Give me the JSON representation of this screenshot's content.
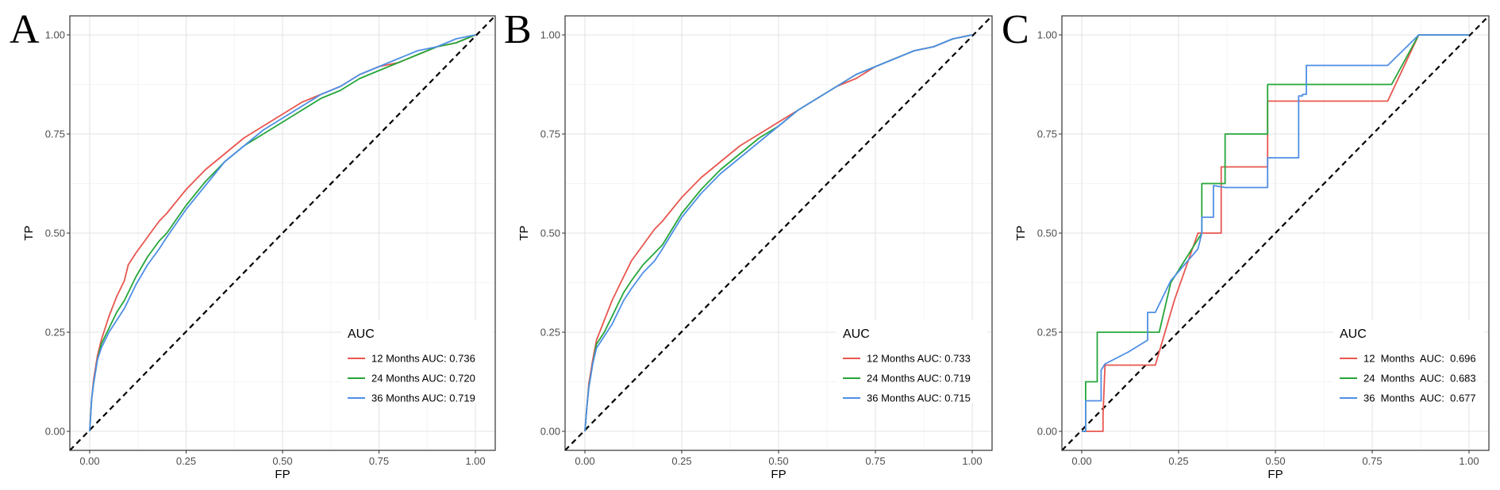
{
  "chart_data": [
    {
      "type": "line",
      "panel_label": "A",
      "xlabel": "FP",
      "ylabel": "TP",
      "xlim": [
        0,
        1
      ],
      "ylim": [
        0,
        1
      ],
      "x_ticks": [
        "0.00",
        "0.25",
        "0.50",
        "0.75",
        "1.00"
      ],
      "y_ticks": [
        "0.00",
        "0.25",
        "0.50",
        "0.75",
        "1.00"
      ],
      "grid": true,
      "reference_line": "diagonal dashed",
      "legend": {
        "title": "AUC",
        "position": "bottom-right",
        "entries": [
          "12 Months AUC: 0.736",
          "24 Months AUC: 0.720",
          "36 Months AUC: 0.719"
        ]
      },
      "series": [
        {
          "color": "#E8564F",
          "x": [
            0,
            0.005,
            0.01,
            0.02,
            0.03,
            0.05,
            0.07,
            0.09,
            0.1,
            0.12,
            0.15,
            0.18,
            0.2,
            0.25,
            0.3,
            0.35,
            0.4,
            0.45,
            0.5,
            0.55,
            0.6,
            0.65,
            0.7,
            0.75,
            0.8,
            0.85,
            0.9,
            0.95,
            1.0
          ],
          "y": [
            0,
            0.08,
            0.13,
            0.19,
            0.23,
            0.29,
            0.34,
            0.38,
            0.42,
            0.45,
            0.49,
            0.53,
            0.55,
            0.61,
            0.66,
            0.7,
            0.74,
            0.77,
            0.8,
            0.83,
            0.85,
            0.87,
            0.9,
            0.92,
            0.93,
            0.95,
            0.97,
            0.98,
            1.0
          ]
        },
        {
          "color": "#25A63A",
          "x": [
            0,
            0.005,
            0.01,
            0.02,
            0.03,
            0.05,
            0.07,
            0.09,
            0.1,
            0.12,
            0.15,
            0.18,
            0.2,
            0.25,
            0.3,
            0.35,
            0.4,
            0.45,
            0.5,
            0.55,
            0.6,
            0.65,
            0.7,
            0.75,
            0.8,
            0.85,
            0.9,
            0.95,
            1.0
          ],
          "y": [
            0,
            0.08,
            0.12,
            0.18,
            0.22,
            0.26,
            0.3,
            0.33,
            0.35,
            0.39,
            0.44,
            0.48,
            0.5,
            0.57,
            0.63,
            0.68,
            0.72,
            0.75,
            0.78,
            0.81,
            0.84,
            0.86,
            0.89,
            0.91,
            0.93,
            0.95,
            0.97,
            0.98,
            1.0
          ]
        },
        {
          "color": "#4F8FE6",
          "x": [
            0,
            0.005,
            0.01,
            0.02,
            0.03,
            0.05,
            0.07,
            0.09,
            0.1,
            0.12,
            0.15,
            0.18,
            0.2,
            0.25,
            0.3,
            0.35,
            0.4,
            0.45,
            0.5,
            0.55,
            0.6,
            0.65,
            0.7,
            0.75,
            0.8,
            0.85,
            0.9,
            0.95,
            1.0
          ],
          "y": [
            0,
            0.08,
            0.12,
            0.18,
            0.21,
            0.25,
            0.28,
            0.31,
            0.33,
            0.37,
            0.42,
            0.46,
            0.49,
            0.56,
            0.62,
            0.68,
            0.72,
            0.76,
            0.79,
            0.82,
            0.85,
            0.87,
            0.9,
            0.92,
            0.94,
            0.96,
            0.97,
            0.99,
            1.0
          ]
        }
      ]
    },
    {
      "type": "line",
      "panel_label": "B",
      "xlabel": "FP",
      "ylabel": "TP",
      "xlim": [
        0,
        1
      ],
      "ylim": [
        0,
        1
      ],
      "x_ticks": [
        "0.00",
        "0.25",
        "0.50",
        "0.75",
        "1.00"
      ],
      "y_ticks": [
        "0.00",
        "0.25",
        "0.50",
        "0.75",
        "1.00"
      ],
      "grid": true,
      "reference_line": "diagonal dashed",
      "legend": {
        "title": "AUC",
        "position": "bottom-right",
        "entries": [
          "12 Months AUC: 0.733",
          "24 Months AUC: 0.719",
          "36 Months AUC: 0.715"
        ]
      },
      "series": [
        {
          "color": "#E8564F",
          "x": [
            0,
            0.005,
            0.01,
            0.02,
            0.03,
            0.05,
            0.07,
            0.09,
            0.1,
            0.12,
            0.15,
            0.18,
            0.2,
            0.25,
            0.3,
            0.35,
            0.4,
            0.45,
            0.5,
            0.55,
            0.6,
            0.65,
            0.7,
            0.75,
            0.8,
            0.85,
            0.9,
            0.95,
            1.0
          ],
          "y": [
            0,
            0.06,
            0.12,
            0.18,
            0.23,
            0.28,
            0.33,
            0.37,
            0.39,
            0.43,
            0.47,
            0.51,
            0.53,
            0.59,
            0.64,
            0.68,
            0.72,
            0.75,
            0.78,
            0.81,
            0.84,
            0.87,
            0.89,
            0.92,
            0.94,
            0.96,
            0.97,
            0.99,
            1.0
          ]
        },
        {
          "color": "#25A63A",
          "x": [
            0,
            0.005,
            0.01,
            0.02,
            0.03,
            0.05,
            0.07,
            0.09,
            0.1,
            0.12,
            0.15,
            0.18,
            0.2,
            0.25,
            0.3,
            0.35,
            0.4,
            0.45,
            0.5,
            0.55,
            0.6,
            0.65,
            0.7,
            0.75,
            0.8,
            0.85,
            0.9,
            0.95,
            1.0
          ],
          "y": [
            0,
            0.06,
            0.11,
            0.17,
            0.22,
            0.25,
            0.29,
            0.33,
            0.35,
            0.38,
            0.42,
            0.45,
            0.47,
            0.55,
            0.61,
            0.66,
            0.7,
            0.74,
            0.77,
            0.81,
            0.84,
            0.87,
            0.9,
            0.92,
            0.94,
            0.96,
            0.97,
            0.99,
            1.0
          ]
        },
        {
          "color": "#4F8FE6",
          "x": [
            0,
            0.005,
            0.01,
            0.02,
            0.03,
            0.05,
            0.07,
            0.09,
            0.1,
            0.12,
            0.15,
            0.18,
            0.2,
            0.25,
            0.3,
            0.35,
            0.4,
            0.45,
            0.5,
            0.55,
            0.6,
            0.65,
            0.7,
            0.75,
            0.8,
            0.85,
            0.9,
            0.95,
            1.0
          ],
          "y": [
            0,
            0.06,
            0.11,
            0.17,
            0.21,
            0.24,
            0.27,
            0.31,
            0.33,
            0.36,
            0.4,
            0.43,
            0.46,
            0.54,
            0.6,
            0.65,
            0.69,
            0.73,
            0.77,
            0.81,
            0.84,
            0.87,
            0.9,
            0.92,
            0.94,
            0.96,
            0.97,
            0.99,
            1.0
          ]
        }
      ]
    },
    {
      "type": "line",
      "panel_label": "C",
      "xlabel": "FP",
      "ylabel": "TP",
      "xlim": [
        0,
        1
      ],
      "ylim": [
        0,
        1
      ],
      "x_ticks": [
        "0.00",
        "0.25",
        "0.50",
        "0.75",
        "1.00"
      ],
      "y_ticks": [
        "0.00",
        "0.25",
        "0.50",
        "0.75",
        "1.00"
      ],
      "grid": true,
      "reference_line": "diagonal dashed",
      "legend": {
        "title": "AUC",
        "position": "bottom-right",
        "entries": [
          "12  Months  AUC:  0.696",
          "24  Months  AUC:  0.683",
          "36  Months  AUC:  0.677"
        ]
      },
      "series": [
        {
          "color": "#E8564F",
          "x": [
            0,
            0.055,
            0.055,
            0.06,
            0.19,
            0.24,
            0.3,
            0.33,
            0.33,
            0.36,
            0.36,
            0.47,
            0.47,
            0.48,
            0.48,
            0.6,
            0.79,
            0.87,
            1.0
          ],
          "y": [
            0,
            0,
            0.04,
            0.167,
            0.167,
            0.333,
            0.5,
            0.5,
            0.5,
            0.5,
            0.667,
            0.667,
            0.667,
            0.667,
            0.833,
            0.833,
            0.833,
            1.0,
            1.0
          ]
        },
        {
          "color": "#25A63A",
          "x": [
            0,
            0.01,
            0.01,
            0.04,
            0.04,
            0.2,
            0.23,
            0.31,
            0.31,
            0.34,
            0.34,
            0.37,
            0.37,
            0.47,
            0.47,
            0.48,
            0.48,
            0.6,
            0.8,
            0.87,
            1.0
          ],
          "y": [
            0,
            0,
            0.125,
            0.125,
            0.25,
            0.25,
            0.375,
            0.5,
            0.625,
            0.625,
            0.625,
            0.625,
            0.75,
            0.75,
            0.75,
            0.75,
            0.875,
            0.875,
            0.875,
            1.0,
            1.0
          ]
        },
        {
          "color": "#4F8FE6",
          "x": [
            0,
            0.01,
            0.01,
            0.05,
            0.05,
            0.06,
            0.12,
            0.17,
            0.17,
            0.19,
            0.19,
            0.23,
            0.3,
            0.31,
            0.31,
            0.34,
            0.34,
            0.37,
            0.37,
            0.48,
            0.48,
            0.56,
            0.56,
            0.57,
            0.57,
            0.58,
            0.58,
            0.6,
            0.79,
            0.87,
            1.0
          ],
          "y": [
            0,
            0,
            0.077,
            0.077,
            0.154,
            0.17,
            0.2,
            0.23,
            0.3,
            0.3,
            0.3,
            0.38,
            0.46,
            0.5,
            0.54,
            0.54,
            0.62,
            0.615,
            0.615,
            0.615,
            0.69,
            0.69,
            0.846,
            0.846,
            0.85,
            0.85,
            0.923,
            0.923,
            0.923,
            1.0,
            1.0
          ]
        }
      ]
    }
  ]
}
